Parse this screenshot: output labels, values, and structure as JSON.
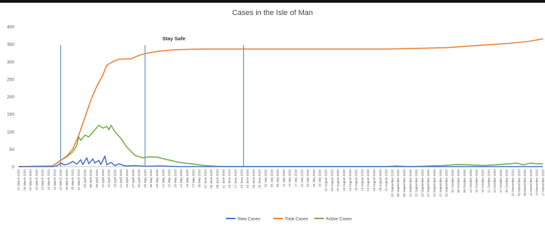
{
  "chart_data": {
    "type": "line",
    "title": "Cases in the Isle of Man",
    "xlabel": "",
    "ylabel": "",
    "ylim": [
      0,
      400
    ],
    "yticks": [
      0,
      50,
      100,
      150,
      200,
      250,
      300,
      350,
      400
    ],
    "annotation": "Stay Safe",
    "reference_lines_x": [
      "22 March 2020",
      "03 May 2020",
      "21 June 2020"
    ],
    "x_start": "01 March 2020",
    "x_end": "17 November 2020",
    "x_tick_labels": [
      "01 March 2020",
      "04 March 2020",
      "07 March 2020",
      "10 March 2020",
      "13 March 2020",
      "16 March 2020",
      "19 March 2020",
      "22 March 2020",
      "25 March 2020",
      "28 March 2020",
      "31 March 2020",
      "03 April 2020",
      "06 April 2020",
      "09 April 2020",
      "12 April 2020",
      "15 April 2020",
      "18 April 2020",
      "21 April 2020",
      "24 April 2020",
      "27 April 2020",
      "30 April 2020",
      "03 May 2020",
      "06 May 2020",
      "09 May 2020",
      "12 May 2020",
      "15 May 2020",
      "18 May 2020",
      "21 May 2020",
      "24 May 2020",
      "27 May 2020",
      "30 May 2020",
      "02 June 2020",
      "05 June 2020",
      "08 June 2020",
      "11 June 2020",
      "14 June 2020",
      "17 June 2020",
      "20 June 2020",
      "23 June 2020",
      "26 June 2020",
      "29 June 2020",
      "02 July 2020",
      "05 July 2020",
      "08 July 2020",
      "11 July 2020",
      "14 July 2020",
      "17 July 2020",
      "20 July 2020",
      "23 July 2020",
      "26 July 2020",
      "29 July 2020",
      "01 August 2020",
      "04 August 2020",
      "07 August 2020",
      "10 August 2020",
      "13 August 2020",
      "16 August 2020",
      "19 August 2020",
      "22 August 2020",
      "25 August 2020",
      "28 August 2020",
      "31 August 2020",
      "03 September 2020",
      "06 September 2020",
      "09 September 2020",
      "12 September 2020",
      "15 September 2020",
      "18 September 2020",
      "21 September 2020",
      "24 September 2020",
      "27 September 2020",
      "30 September 2020",
      "03 October 2020",
      "06 October 2020",
      "09 October 2020",
      "12 October 2020",
      "15 October 2020",
      "18 October 2020",
      "21 October 2020",
      "24 October 2020",
      "27 October 2020",
      "30 October 2020",
      "02 November 2020",
      "05 November 2020",
      "08 November 2020",
      "11 November 2020",
      "14 November 2020",
      "17 November 2020"
    ],
    "series": [
      {
        "name": "New Cases",
        "color": "#4472C4",
        "points": [
          [
            "01 March 2020",
            0
          ],
          [
            "18 March 2020",
            0
          ],
          [
            "20 March 2020",
            2
          ],
          [
            "22 March 2020",
            10
          ],
          [
            "24 March 2020",
            5
          ],
          [
            "26 March 2020",
            8
          ],
          [
            "28 March 2020",
            15
          ],
          [
            "30 March 2020",
            7
          ],
          [
            "01 April 2020",
            20
          ],
          [
            "02 April 2020",
            6
          ],
          [
            "04 April 2020",
            25
          ],
          [
            "05 April 2020",
            8
          ],
          [
            "07 April 2020",
            22
          ],
          [
            "08 April 2020",
            10
          ],
          [
            "10 April 2020",
            18
          ],
          [
            "11 April 2020",
            6
          ],
          [
            "13 April 2020",
            30
          ],
          [
            "14 April 2020",
            5
          ],
          [
            "16 April 2020",
            12
          ],
          [
            "18 April 2020",
            3
          ],
          [
            "20 April 2020",
            8
          ],
          [
            "23 April 2020",
            2
          ],
          [
            "28 April 2020",
            3
          ],
          [
            "03 May 2020",
            1
          ],
          [
            "10 May 2020",
            2
          ],
          [
            "20 May 2020",
            0
          ],
          [
            "31 May 2020",
            0
          ],
          [
            "17 November 2020",
            0
          ]
        ]
      },
      {
        "name": "Total Cases",
        "color": "#ED7D31",
        "points": [
          [
            "01 March 2020",
            0
          ],
          [
            "18 March 2020",
            2
          ],
          [
            "22 March 2020",
            18
          ],
          [
            "25 March 2020",
            30
          ],
          [
            "28 March 2020",
            50
          ],
          [
            "31 March 2020",
            90
          ],
          [
            "03 April 2020",
            140
          ],
          [
            "06 April 2020",
            190
          ],
          [
            "09 April 2020",
            230
          ],
          [
            "12 April 2020",
            262
          ],
          [
            "14 April 2020",
            290
          ],
          [
            "17 April 2020",
            300
          ],
          [
            "20 April 2020",
            307
          ],
          [
            "26 April 2020",
            308
          ],
          [
            "30 April 2020",
            318
          ],
          [
            "04 May 2020",
            324
          ],
          [
            "10 May 2020",
            330
          ],
          [
            "18 May 2020",
            334
          ],
          [
            "31 May 2020",
            336
          ],
          [
            "30 June 2020",
            336
          ],
          [
            "31 August 2020",
            336
          ],
          [
            "15 September 2020",
            338
          ],
          [
            "30 September 2020",
            340
          ],
          [
            "15 October 2020",
            346
          ],
          [
            "31 October 2020",
            352
          ],
          [
            "10 November 2020",
            358
          ],
          [
            "17 November 2020",
            365
          ]
        ]
      },
      {
        "name": "Active Cases",
        "color": "#70AD47",
        "points": [
          [
            "01 March 2020",
            0
          ],
          [
            "18 March 2020",
            2
          ],
          [
            "22 March 2020",
            18
          ],
          [
            "25 March 2020",
            28
          ],
          [
            "28 March 2020",
            42
          ],
          [
            "30 March 2020",
            60
          ],
          [
            "31 March 2020",
            85
          ],
          [
            "01 April 2020",
            75
          ],
          [
            "03 April 2020",
            90
          ],
          [
            "05 April 2020",
            85
          ],
          [
            "08 April 2020",
            105
          ],
          [
            "10 April 2020",
            118
          ],
          [
            "12 April 2020",
            110
          ],
          [
            "14 April 2020",
            115
          ],
          [
            "15 April 2020",
            105
          ],
          [
            "16 April 2020",
            118
          ],
          [
            "18 April 2020",
            100
          ],
          [
            "21 April 2020",
            80
          ],
          [
            "24 April 2020",
            55
          ],
          [
            "28 April 2020",
            32
          ],
          [
            "02 May 2020",
            25
          ],
          [
            "05 May 2020",
            28
          ],
          [
            "09 May 2020",
            27
          ],
          [
            "14 May 2020",
            20
          ],
          [
            "20 May 2020",
            12
          ],
          [
            "26 May 2020",
            8
          ],
          [
            "02 June 2020",
            3
          ],
          [
            "08 June 2020",
            1
          ],
          [
            "15 June 2020",
            0
          ],
          [
            "31 August 2020",
            0
          ],
          [
            "05 September 2020",
            2
          ],
          [
            "12 September 2020",
            0
          ],
          [
            "28 September 2020",
            3
          ],
          [
            "05 October 2020",
            6
          ],
          [
            "12 October 2020",
            5
          ],
          [
            "18 October 2020",
            3
          ],
          [
            "24 October 2020",
            5
          ],
          [
            "31 October 2020",
            8
          ],
          [
            "04 November 2020",
            10
          ],
          [
            "07 November 2020",
            5
          ],
          [
            "11 November 2020",
            10
          ],
          [
            "14 November 2020",
            8
          ],
          [
            "17 November 2020",
            8
          ]
        ]
      }
    ],
    "legend": [
      "New Cases",
      "Total Cases",
      "Active Cases"
    ],
    "legend_position": "bottom",
    "grid": false
  }
}
